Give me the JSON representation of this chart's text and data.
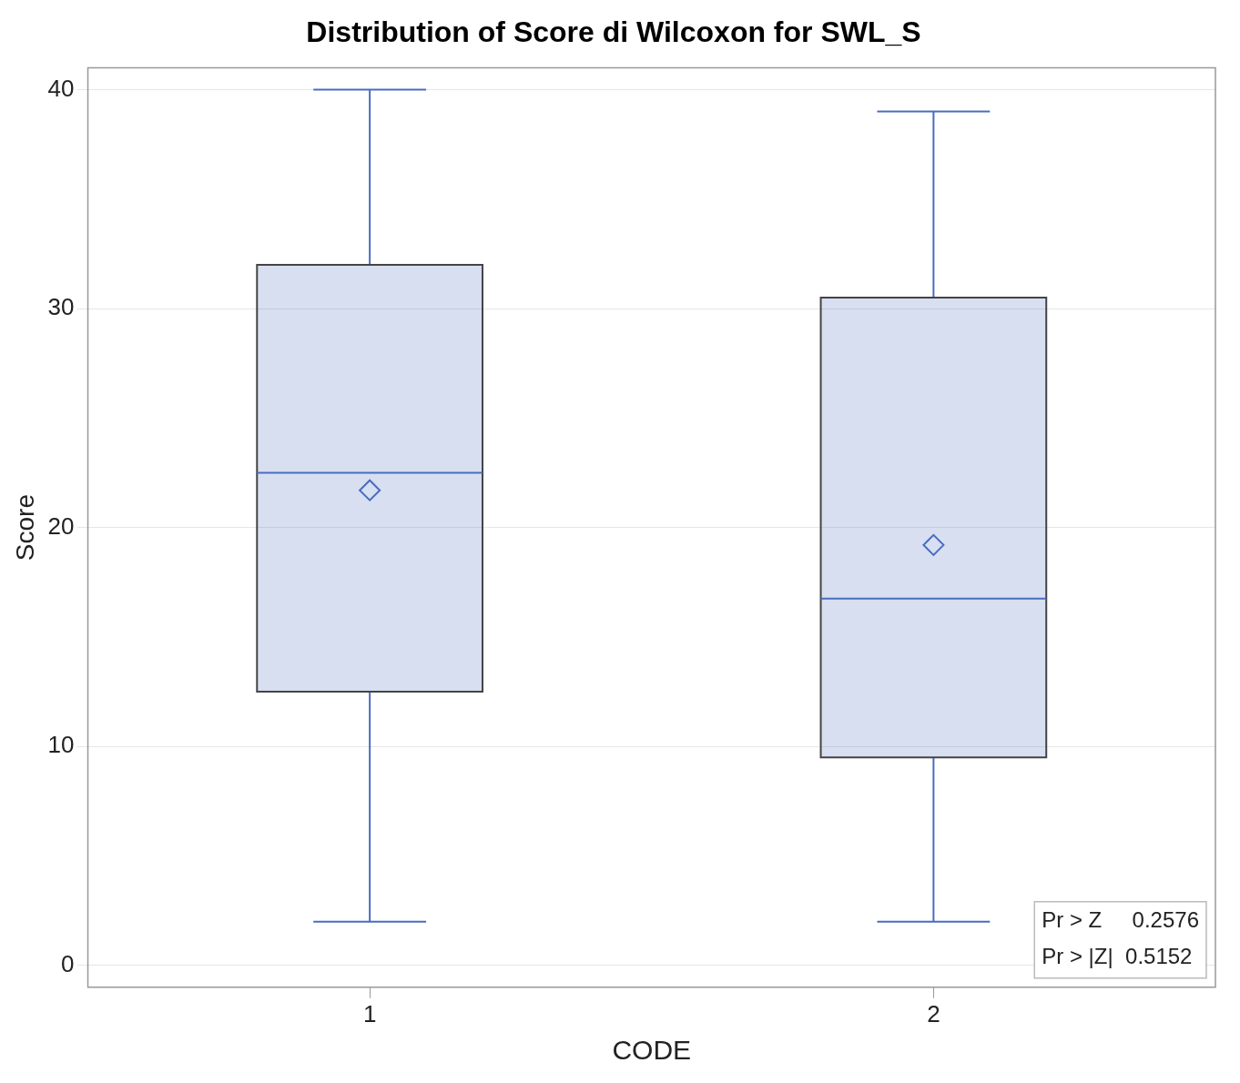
{
  "chart_data": {
    "type": "box",
    "title": "Distribution of Score di Wilcoxon for SWL_S",
    "xlabel": "CODE",
    "ylabel": "Score",
    "categories": [
      "1",
      "2"
    ],
    "series": [
      {
        "color": "#4a6cbf",
        "boxes": [
          {
            "low": 2,
            "q1": 12.5,
            "median": 22.5,
            "q3": 32,
            "high": 40,
            "mean": 21.7
          },
          {
            "low": 2,
            "q1": 9.5,
            "median": 16.75,
            "q3": 30.5,
            "high": 39,
            "mean": 19.2
          }
        ]
      }
    ],
    "ylim": [
      -1,
      41
    ],
    "yticks": [
      0,
      10,
      20,
      30,
      40
    ],
    "grid": "y",
    "marker": "diamond",
    "annotations": [
      "Pr > Z     0.2576",
      "Pr > |Z|  0.5152"
    ]
  }
}
